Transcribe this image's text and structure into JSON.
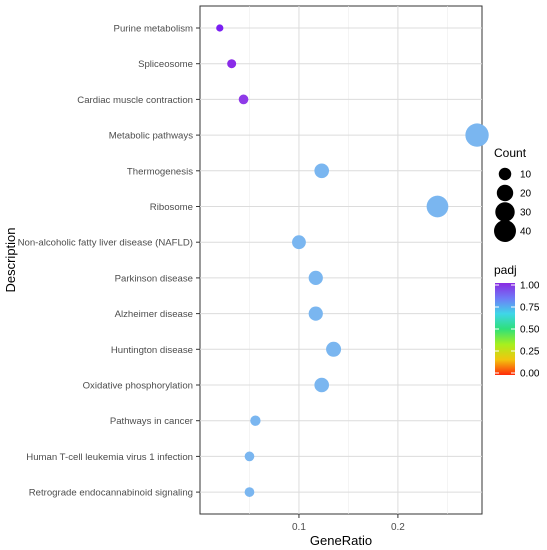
{
  "chart_data": {
    "type": "scatter",
    "xlabel": "GeneRatio",
    "ylabel": "Description",
    "xlim": [
      0.0,
      0.285
    ],
    "x_ticks": [
      0.1,
      0.2
    ],
    "x_tick_labels": [
      "0.1",
      "0.2"
    ],
    "grid": true,
    "categories": [
      "Purine metabolism",
      "Spliceosome",
      "Cardiac muscle contraction",
      "Metabolic pathways",
      "Thermogenesis",
      "Ribosome",
      "Non-alcoholic fatty liver disease (NAFLD)",
      "Parkinson disease",
      "Alzheimer disease",
      "Huntington disease",
      "Oxidative phosphorylation",
      "Pathways in cancer",
      "Human T-cell leukemia virus 1 infection",
      "Retrograde endocannabinoid signaling"
    ],
    "points": [
      {
        "term": "Purine metabolism",
        "gene_ratio": 0.02,
        "count": 2,
        "padj": 0.98,
        "color": "#7a1ff2"
      },
      {
        "term": "Spliceosome",
        "gene_ratio": 0.032,
        "count": 4,
        "padj": 0.95,
        "color": "#8a2be8"
      },
      {
        "term": "Cardiac muscle contraction",
        "gene_ratio": 0.044,
        "count": 5,
        "padj": 0.93,
        "color": "#8f3ae8"
      },
      {
        "term": "Metabolic pathways",
        "gene_ratio": 0.28,
        "count": 46,
        "padj": 0.72,
        "color": "#7ab6f0"
      },
      {
        "term": "Thermogenesis",
        "gene_ratio": 0.123,
        "count": 15,
        "padj": 0.72,
        "color": "#7ab6f0"
      },
      {
        "term": "Ribosome",
        "gene_ratio": 0.24,
        "count": 39,
        "padj": 0.72,
        "color": "#7ab6f0"
      },
      {
        "term": "Non-alcoholic fatty liver disease (NAFLD)",
        "gene_ratio": 0.1,
        "count": 13,
        "padj": 0.72,
        "color": "#7ab6f0"
      },
      {
        "term": "Parkinson disease",
        "gene_ratio": 0.117,
        "count": 14,
        "padj": 0.72,
        "color": "#7ab6f0"
      },
      {
        "term": "Alzheimer disease",
        "gene_ratio": 0.117,
        "count": 14,
        "padj": 0.72,
        "color": "#7ab6f0"
      },
      {
        "term": "Huntington disease",
        "gene_ratio": 0.135,
        "count": 16,
        "padj": 0.72,
        "color": "#7ab6f0"
      },
      {
        "term": "Oxidative phosphorylation",
        "gene_ratio": 0.123,
        "count": 15,
        "padj": 0.72,
        "color": "#7ab6f0"
      },
      {
        "term": "Pathways in cancer",
        "gene_ratio": 0.056,
        "count": 6,
        "padj": 0.72,
        "color": "#7ab6f0"
      },
      {
        "term": "Human T-cell leukemia virus 1 infection",
        "gene_ratio": 0.05,
        "count": 5,
        "padj": 0.72,
        "color": "#7ab6f0"
      },
      {
        "term": "Retrograde endocannabinoid signaling",
        "gene_ratio": 0.05,
        "count": 5,
        "padj": 0.72,
        "color": "#7ab6f0"
      }
    ],
    "legend": {
      "size": {
        "title": "Count",
        "values": [
          10,
          20,
          30,
          40
        ]
      },
      "color": {
        "title": "padj",
        "values": [
          "1.00",
          "0.75",
          "0.50",
          "0.25",
          "0.00"
        ],
        "gradient": [
          "#8a2be2",
          "#6f7bf7",
          "#3fd6e8",
          "#2fe07a",
          "#a6f01e",
          "#f2c50e",
          "#ff2a0a"
        ]
      },
      "placement": "right"
    }
  }
}
